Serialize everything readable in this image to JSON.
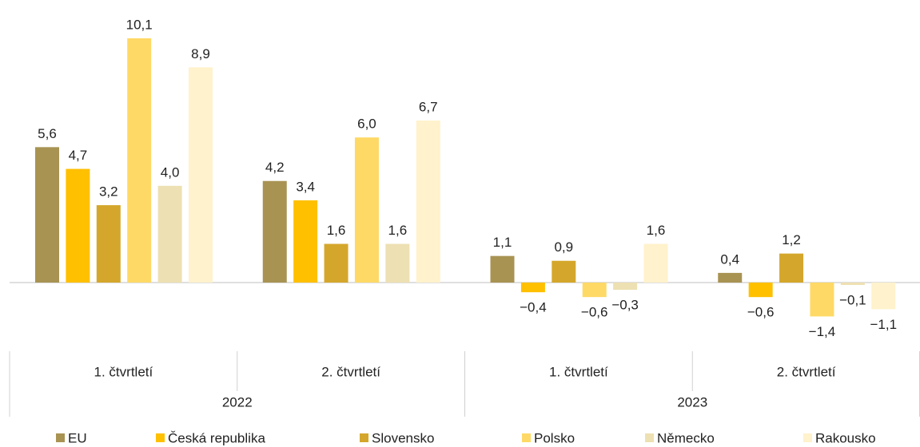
{
  "chart_data": {
    "type": "bar",
    "categories": [
      "1. čtvrtletí",
      "2. čtvrtletí",
      "1. čtvrtletí",
      "2. čtvrtletí"
    ],
    "category_groups": [
      {
        "label": "2022",
        "count": 2
      },
      {
        "label": "2023",
        "count": 2
      }
    ],
    "series": [
      {
        "name": "EU",
        "color": "#a89353",
        "values": [
          5.6,
          4.2,
          1.1,
          0.4
        ],
        "value_labels": [
          "5,6",
          "4,2",
          "1,1",
          "0,4"
        ]
      },
      {
        "name": "Česká republika",
        "color": "#ffc000",
        "values": [
          4.7,
          3.4,
          -0.4,
          -0.6
        ],
        "value_labels": [
          "4,7",
          "3,4",
          "−0,4",
          "−0,6"
        ]
      },
      {
        "name": "Slovensko",
        "color": "#d4a72c",
        "values": [
          3.2,
          1.6,
          0.9,
          1.2
        ],
        "value_labels": [
          "3,2",
          "1,6",
          "0,9",
          "1,2"
        ]
      },
      {
        "name": "Polsko",
        "color": "#ffd966",
        "values": [
          10.1,
          6.0,
          -0.6,
          -1.4
        ],
        "value_labels": [
          "10,1",
          "6,0",
          "−0,6",
          "−1,4"
        ]
      },
      {
        "name": "Německo",
        "color": "#ede0b2",
        "values": [
          4.0,
          1.6,
          -0.3,
          -0.1
        ],
        "value_labels": [
          "4,0",
          "1,6",
          "−0,3",
          "−0,1"
        ]
      },
      {
        "name": "Rakousko",
        "color": "#fff2cc",
        "values": [
          8.9,
          6.7,
          1.6,
          -1.1
        ],
        "value_labels": [
          "8,9",
          "6,7",
          "1,6",
          "−1,1"
        ]
      }
    ]
  }
}
